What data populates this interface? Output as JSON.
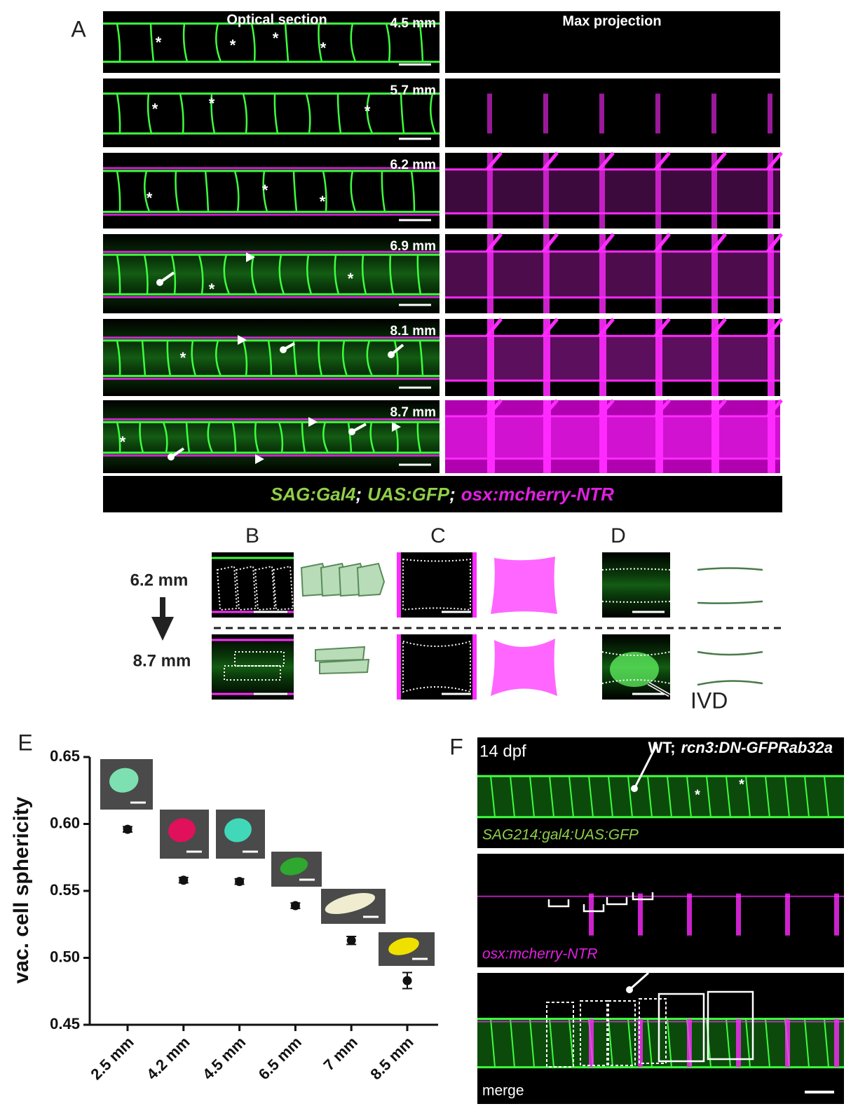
{
  "panel_a": {
    "label": "A",
    "left_title": "Optical section",
    "right_title": "Max projection",
    "stages": [
      "4.5 mm",
      "5.7 mm",
      "6.2 mm",
      "6.9 mm",
      "8.1 mm",
      "8.7 mm"
    ],
    "asterisk": "*",
    "caption": {
      "gal4": "SAG:Gal4",
      "sep1": ";",
      "uas": "UAS:GFP",
      "sep2": ";",
      "osx": "osx:mcherry-NTR"
    }
  },
  "panel_bcd": {
    "labels": [
      "B",
      "C",
      "D"
    ],
    "stages": [
      "6.2 mm",
      "8.7 mm"
    ],
    "ivd": "IVD"
  },
  "chart_data": {
    "type": "scatter",
    "panel_label": "E",
    "y_label": "vac. cell sphericity",
    "categories": [
      "2.5 mm",
      "4.2 mm",
      "4.5 mm",
      "6.5 mm",
      "7 mm",
      "8.5 mm"
    ],
    "values": [
      0.596,
      0.558,
      0.557,
      0.539,
      0.513,
      0.483
    ],
    "errors": [
      0.002,
      0.002,
      0.002,
      0.002,
      0.003,
      0.006
    ],
    "color": "#111111",
    "ylim": [
      0.45,
      0.65
    ],
    "yticks": [
      0.45,
      {
        "value": 0.5,
        "label": "0.50"
      },
      0.55,
      {
        "value": 0.6,
        "label": "0.60"
      },
      0.65
    ]
  },
  "panel_f": {
    "label": "F",
    "age": "14 dpf",
    "genotype_prefix": "WT;",
    "genotype": "rcn3:DN-GFPRab32a",
    "channels": [
      "SAG214:gal4:UAS:GFP",
      "osx:mcherry-NTR",
      "merge"
    ]
  }
}
